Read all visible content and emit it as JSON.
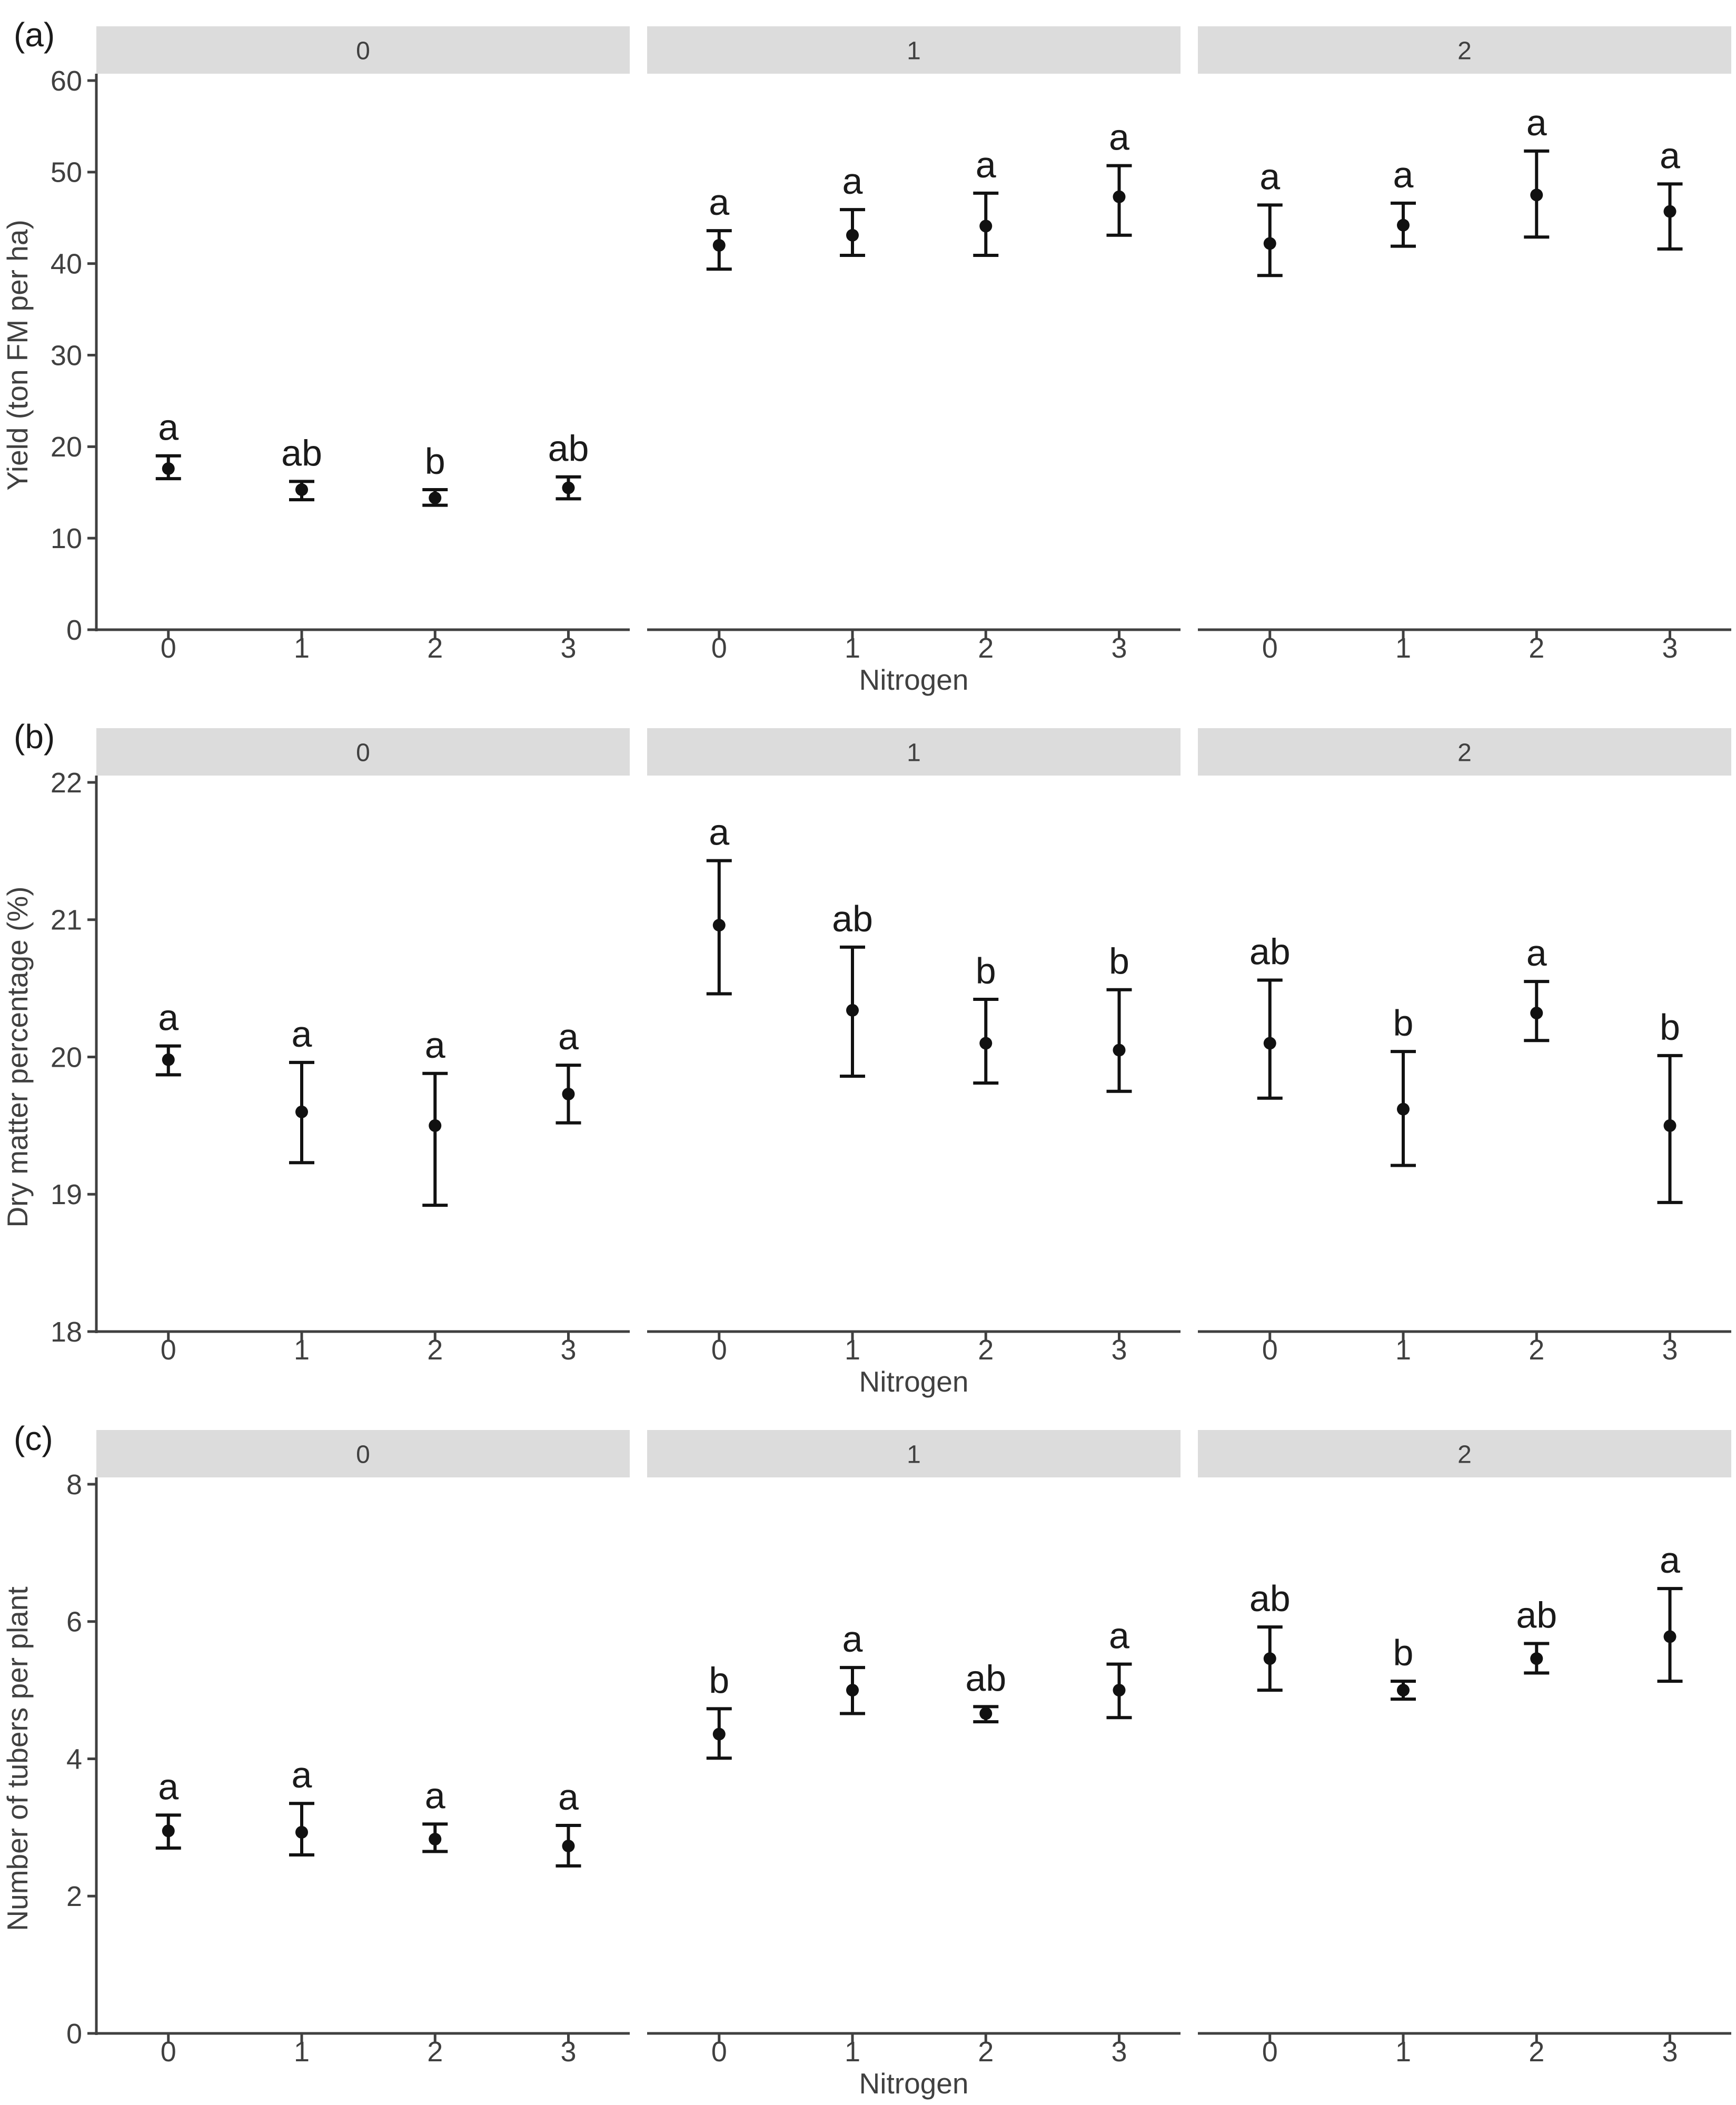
{
  "figure": {
    "background": "#ffffff",
    "strip_background": "#dcdcdc",
    "strip_text_color": "#404040",
    "axis_line_color": "#404040",
    "tick_text_color": "#404040",
    "data_color": "#111111",
    "x_axis_title": "Nitrogen",
    "facet_titles": [
      "0",
      "1",
      "2"
    ],
    "x_tick_labels": [
      "0",
      "1",
      "2",
      "3"
    ]
  },
  "chart_data": [
    {
      "type": "scatter",
      "panel_label": "(a)",
      "ylabel": "Yield (ton FM per ha)",
      "xlabel": "Nitrogen",
      "ylim": [
        0,
        60
      ],
      "yticks": [
        0,
        10,
        20,
        30,
        40,
        50,
        60
      ],
      "grid": false,
      "legend": "none",
      "x_categories": [
        "0",
        "1",
        "2",
        "3"
      ],
      "facets": [
        {
          "name": "0",
          "points": [
            {
              "x": "0",
              "mean": 17.6,
              "ci_low": 16.5,
              "ci_high": 19.0,
              "letter": "a"
            },
            {
              "x": "1",
              "mean": 15.3,
              "ci_low": 14.2,
              "ci_high": 16.2,
              "letter": "ab"
            },
            {
              "x": "2",
              "mean": 14.4,
              "ci_low": 13.6,
              "ci_high": 15.3,
              "letter": "b"
            },
            {
              "x": "3",
              "mean": 15.5,
              "ci_low": 14.3,
              "ci_high": 16.7,
              "letter": "ab"
            }
          ]
        },
        {
          "name": "1",
          "points": [
            {
              "x": "0",
              "mean": 42.0,
              "ci_low": 39.4,
              "ci_high": 43.6,
              "letter": "a"
            },
            {
              "x": "1",
              "mean": 43.1,
              "ci_low": 40.9,
              "ci_high": 45.9,
              "letter": "a"
            },
            {
              "x": "2",
              "mean": 44.1,
              "ci_low": 40.9,
              "ci_high": 47.7,
              "letter": "a"
            },
            {
              "x": "3",
              "mean": 47.3,
              "ci_low": 43.1,
              "ci_high": 50.7,
              "letter": "a"
            }
          ]
        },
        {
          "name": "2",
          "points": [
            {
              "x": "0",
              "mean": 42.2,
              "ci_low": 38.7,
              "ci_high": 46.4,
              "letter": "a"
            },
            {
              "x": "1",
              "mean": 44.2,
              "ci_low": 41.9,
              "ci_high": 46.6,
              "letter": "a"
            },
            {
              "x": "2",
              "mean": 47.5,
              "ci_low": 42.9,
              "ci_high": 52.3,
              "letter": "a"
            },
            {
              "x": "3",
              "mean": 45.7,
              "ci_low": 41.6,
              "ci_high": 48.7,
              "letter": "a"
            }
          ]
        }
      ]
    },
    {
      "type": "scatter",
      "panel_label": "(b)",
      "ylabel": "Dry matter percentage (%)",
      "xlabel": "Nitrogen",
      "ylim": [
        18,
        22
      ],
      "yticks": [
        18,
        19,
        20,
        21,
        22
      ],
      "grid": false,
      "legend": "none",
      "x_categories": [
        "0",
        "1",
        "2",
        "3"
      ],
      "facets": [
        {
          "name": "0",
          "points": [
            {
              "x": "0",
              "mean": 19.98,
              "ci_low": 19.87,
              "ci_high": 20.08,
              "letter": "a"
            },
            {
              "x": "1",
              "mean": 19.6,
              "ci_low": 19.23,
              "ci_high": 19.96,
              "letter": "a"
            },
            {
              "x": "2",
              "mean": 19.5,
              "ci_low": 18.92,
              "ci_high": 19.88,
              "letter": "a"
            },
            {
              "x": "3",
              "mean": 19.73,
              "ci_low": 19.52,
              "ci_high": 19.94,
              "letter": "a"
            }
          ]
        },
        {
          "name": "1",
          "points": [
            {
              "x": "0",
              "mean": 20.96,
              "ci_low": 20.46,
              "ci_high": 21.43,
              "letter": "a"
            },
            {
              "x": "1",
              "mean": 20.34,
              "ci_low": 19.86,
              "ci_high": 20.8,
              "letter": "ab"
            },
            {
              "x": "2",
              "mean": 20.1,
              "ci_low": 19.81,
              "ci_high": 20.42,
              "letter": "b"
            },
            {
              "x": "3",
              "mean": 20.05,
              "ci_low": 19.75,
              "ci_high": 20.49,
              "letter": "b"
            }
          ]
        },
        {
          "name": "2",
          "points": [
            {
              "x": "0",
              "mean": 20.1,
              "ci_low": 19.7,
              "ci_high": 20.56,
              "letter": "ab"
            },
            {
              "x": "1",
              "mean": 19.62,
              "ci_low": 19.21,
              "ci_high": 20.04,
              "letter": "b"
            },
            {
              "x": "2",
              "mean": 20.32,
              "ci_low": 20.12,
              "ci_high": 20.55,
              "letter": "a"
            },
            {
              "x": "3",
              "mean": 19.5,
              "ci_low": 18.94,
              "ci_high": 20.01,
              "letter": "b"
            }
          ]
        }
      ]
    },
    {
      "type": "scatter",
      "panel_label": "(c)",
      "ylabel": "Number of tubers per plant",
      "xlabel": "Nitrogen",
      "ylim": [
        0,
        8
      ],
      "yticks": [
        0,
        2,
        4,
        6,
        8
      ],
      "grid": false,
      "legend": "none",
      "x_categories": [
        "0",
        "1",
        "2",
        "3"
      ],
      "facets": [
        {
          "name": "0",
          "points": [
            {
              "x": "0",
              "mean": 2.95,
              "ci_low": 2.7,
              "ci_high": 3.18,
              "letter": "a"
            },
            {
              "x": "1",
              "mean": 2.93,
              "ci_low": 2.6,
              "ci_high": 3.35,
              "letter": "a"
            },
            {
              "x": "2",
              "mean": 2.83,
              "ci_low": 2.65,
              "ci_high": 3.05,
              "letter": "a"
            },
            {
              "x": "3",
              "mean": 2.73,
              "ci_low": 2.44,
              "ci_high": 3.03,
              "letter": "a"
            }
          ]
        },
        {
          "name": "1",
          "points": [
            {
              "x": "0",
              "mean": 4.36,
              "ci_low": 4.01,
              "ci_high": 4.73,
              "letter": "b"
            },
            {
              "x": "1",
              "mean": 5.0,
              "ci_low": 4.66,
              "ci_high": 5.33,
              "letter": "a"
            },
            {
              "x": "2",
              "mean": 4.66,
              "ci_low": 4.54,
              "ci_high": 4.76,
              "letter": "ab"
            },
            {
              "x": "3",
              "mean": 5.0,
              "ci_low": 4.6,
              "ci_high": 5.38,
              "letter": "a"
            }
          ]
        },
        {
          "name": "2",
          "points": [
            {
              "x": "0",
              "mean": 5.46,
              "ci_low": 5.0,
              "ci_high": 5.92,
              "letter": "ab"
            },
            {
              "x": "1",
              "mean": 5.0,
              "ci_low": 4.87,
              "ci_high": 5.13,
              "letter": "b"
            },
            {
              "x": "2",
              "mean": 5.46,
              "ci_low": 5.25,
              "ci_high": 5.68,
              "letter": "ab"
            },
            {
              "x": "3",
              "mean": 5.78,
              "ci_low": 5.13,
              "ci_high": 6.48,
              "letter": "a"
            }
          ]
        }
      ]
    }
  ]
}
